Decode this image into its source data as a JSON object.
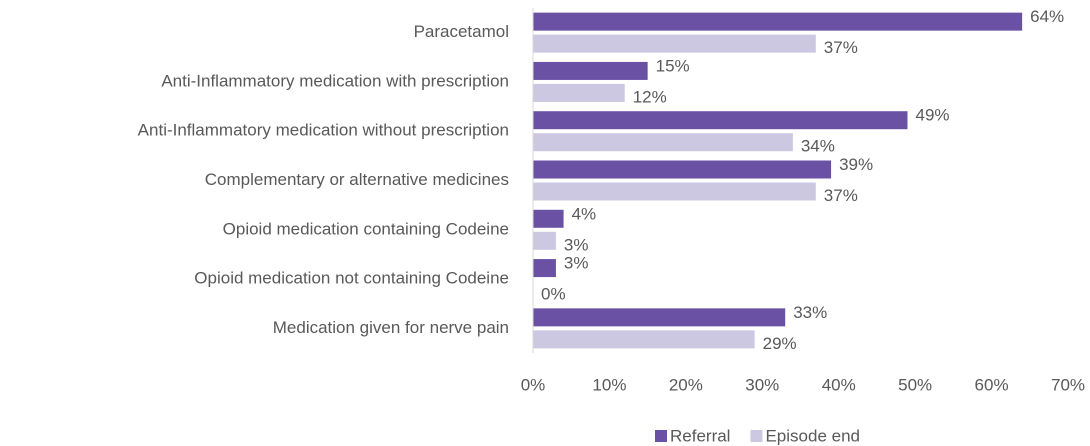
{
  "chart_data": {
    "type": "bar",
    "orientation": "horizontal",
    "categories": [
      "Paracetamol",
      "Anti-Inflammatory medication with prescription",
      "Anti-Inflammatory medication without prescription",
      "Complementary or alternative medicines",
      "Opioid medication containing Codeine",
      "Opioid medication not containing Codeine",
      "Medication given for nerve pain"
    ],
    "series": [
      {
        "name": "Referral",
        "color": "#6a51a3",
        "values": [
          64,
          15,
          49,
          39,
          4,
          3,
          33
        ],
        "value_labels": [
          "64%",
          "15%",
          "49%",
          "39%",
          "4%",
          "3%",
          "33%"
        ]
      },
      {
        "name": "Episode end",
        "color": "#cdc8e2",
        "values": [
          37,
          12,
          34,
          37,
          3,
          0,
          29
        ],
        "value_labels": [
          "37%",
          "12%",
          "34%",
          "37%",
          "3%",
          "0%",
          "29%"
        ]
      }
    ],
    "xlim": [
      0,
      70
    ],
    "xticks": [
      {
        "value": 0,
        "label": "0%"
      },
      {
        "value": 10,
        "label": "10%"
      },
      {
        "value": 20,
        "label": "20%"
      },
      {
        "value": 30,
        "label": "30%"
      },
      {
        "value": 40,
        "label": "40%"
      },
      {
        "value": 50,
        "label": "50%"
      },
      {
        "value": 60,
        "label": "60%"
      },
      {
        "value": 70,
        "label": "70%"
      }
    ],
    "legend": "bottom"
  }
}
